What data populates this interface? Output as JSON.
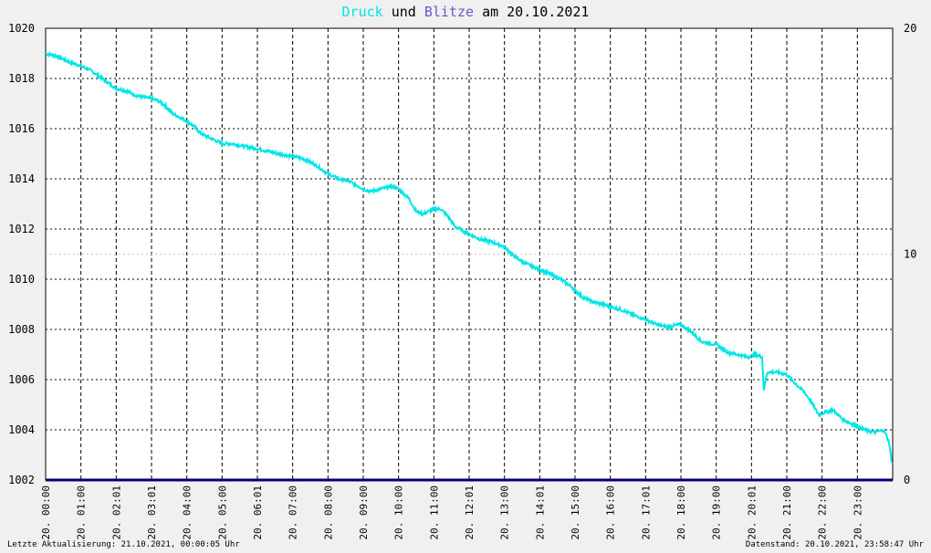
{
  "title": {
    "druck": "Druck",
    "und": "und",
    "blitze": "Blitze",
    "am": "am",
    "date": "20.10.2021"
  },
  "footer": {
    "left": "Letzte Aktualisierung: 21.10.2021, 00:00:05 Uhr",
    "right": "Datenstand: 20.10.2021, 23:58:47 Uhr"
  },
  "colors": {
    "druck": "#00e5e5",
    "blitze": "#6a5acd",
    "baseline": "#000080",
    "grid": "#000000",
    "background": "#f0f0f0",
    "plot_background": "#ffffff"
  },
  "chart_data": {
    "type": "line",
    "x_ticks": [
      "20. 00:00",
      "20. 01:00",
      "20. 02:01",
      "20. 03:01",
      "20. 04:00",
      "20. 05:00",
      "20. 06:01",
      "20. 07:00",
      "20. 08:00",
      "20. 09:00",
      "20. 10:00",
      "20. 11:00",
      "20. 12:01",
      "20. 13:00",
      "20. 14:01",
      "20. 15:00",
      "20. 16:00",
      "20. 17:01",
      "20. 18:00",
      "20. 19:00",
      "20. 20:01",
      "20. 21:00",
      "20. 22:00",
      "20. 23:00"
    ],
    "x_range_hours": [
      0,
      24
    ],
    "y_left": {
      "ticks": [
        "1020",
        "1018",
        "1016",
        "1014",
        "1012",
        "1010",
        "1008",
        "1006",
        "1004",
        "1002"
      ],
      "range": [
        1002,
        1020
      ]
    },
    "y_right": {
      "ticks": [
        "20",
        "10",
        "0"
      ],
      "range": [
        0,
        20
      ]
    },
    "grid": true,
    "series": [
      {
        "name": "Druck",
        "axis": "left",
        "points": [
          [
            0.0,
            1019.0
          ],
          [
            0.3,
            1018.9
          ],
          [
            0.6,
            1018.7
          ],
          [
            1.0,
            1018.5
          ],
          [
            1.3,
            1018.3
          ],
          [
            1.6,
            1018.0
          ],
          [
            1.8,
            1017.8
          ],
          [
            2.0,
            1017.6
          ],
          [
            2.3,
            1017.5
          ],
          [
            2.6,
            1017.3
          ],
          [
            3.0,
            1017.2
          ],
          [
            3.2,
            1017.1
          ],
          [
            3.4,
            1016.9
          ],
          [
            3.6,
            1016.6
          ],
          [
            4.0,
            1016.3
          ],
          [
            4.2,
            1016.1
          ],
          [
            4.4,
            1015.8
          ],
          [
            4.7,
            1015.6
          ],
          [
            5.0,
            1015.4
          ],
          [
            5.3,
            1015.4
          ],
          [
            5.6,
            1015.3
          ],
          [
            6.0,
            1015.2
          ],
          [
            6.3,
            1015.1
          ],
          [
            6.6,
            1015.0
          ],
          [
            7.0,
            1014.9
          ],
          [
            7.3,
            1014.8
          ],
          [
            7.6,
            1014.6
          ],
          [
            8.0,
            1014.2
          ],
          [
            8.3,
            1014.0
          ],
          [
            8.6,
            1013.9
          ],
          [
            9.0,
            1013.6
          ],
          [
            9.2,
            1013.5
          ],
          [
            9.5,
            1013.6
          ],
          [
            9.8,
            1013.7
          ],
          [
            10.0,
            1013.6
          ],
          [
            10.3,
            1013.2
          ],
          [
            10.5,
            1012.7
          ],
          [
            10.7,
            1012.6
          ],
          [
            11.0,
            1012.8
          ],
          [
            11.2,
            1012.8
          ],
          [
            11.4,
            1012.5
          ],
          [
            11.6,
            1012.1
          ],
          [
            12.0,
            1011.8
          ],
          [
            12.3,
            1011.6
          ],
          [
            12.6,
            1011.5
          ],
          [
            13.0,
            1011.3
          ],
          [
            13.2,
            1011.0
          ],
          [
            13.5,
            1010.7
          ],
          [
            13.8,
            1010.5
          ],
          [
            14.0,
            1010.4
          ],
          [
            14.3,
            1010.2
          ],
          [
            14.6,
            1010.0
          ],
          [
            14.9,
            1009.7
          ],
          [
            15.2,
            1009.3
          ],
          [
            15.5,
            1009.1
          ],
          [
            15.8,
            1009.0
          ],
          [
            16.0,
            1008.9
          ],
          [
            16.3,
            1008.8
          ],
          [
            16.6,
            1008.6
          ],
          [
            17.0,
            1008.4
          ],
          [
            17.3,
            1008.2
          ],
          [
            17.6,
            1008.1
          ],
          [
            18.0,
            1008.2
          ],
          [
            18.3,
            1007.9
          ],
          [
            18.6,
            1007.5
          ],
          [
            19.0,
            1007.4
          ],
          [
            19.3,
            1007.1
          ],
          [
            19.6,
            1007.0
          ],
          [
            19.9,
            1006.9
          ],
          [
            20.1,
            1007.0
          ],
          [
            20.3,
            1006.9
          ],
          [
            20.35,
            1005.6
          ],
          [
            20.45,
            1006.3
          ],
          [
            20.7,
            1006.3
          ],
          [
            21.0,
            1006.2
          ],
          [
            21.2,
            1005.9
          ],
          [
            21.5,
            1005.5
          ],
          [
            21.7,
            1005.1
          ],
          [
            21.9,
            1004.6
          ],
          [
            22.1,
            1004.7
          ],
          [
            22.3,
            1004.8
          ],
          [
            22.6,
            1004.4
          ],
          [
            22.9,
            1004.2
          ],
          [
            23.2,
            1004.0
          ],
          [
            23.5,
            1003.9
          ],
          [
            23.75,
            1004.0
          ],
          [
            23.9,
            1003.5
          ],
          [
            23.97,
            1002.7
          ]
        ]
      },
      {
        "name": "Blitze",
        "axis": "right",
        "points": [
          [
            0,
            0
          ],
          [
            24,
            0
          ]
        ]
      }
    ]
  }
}
